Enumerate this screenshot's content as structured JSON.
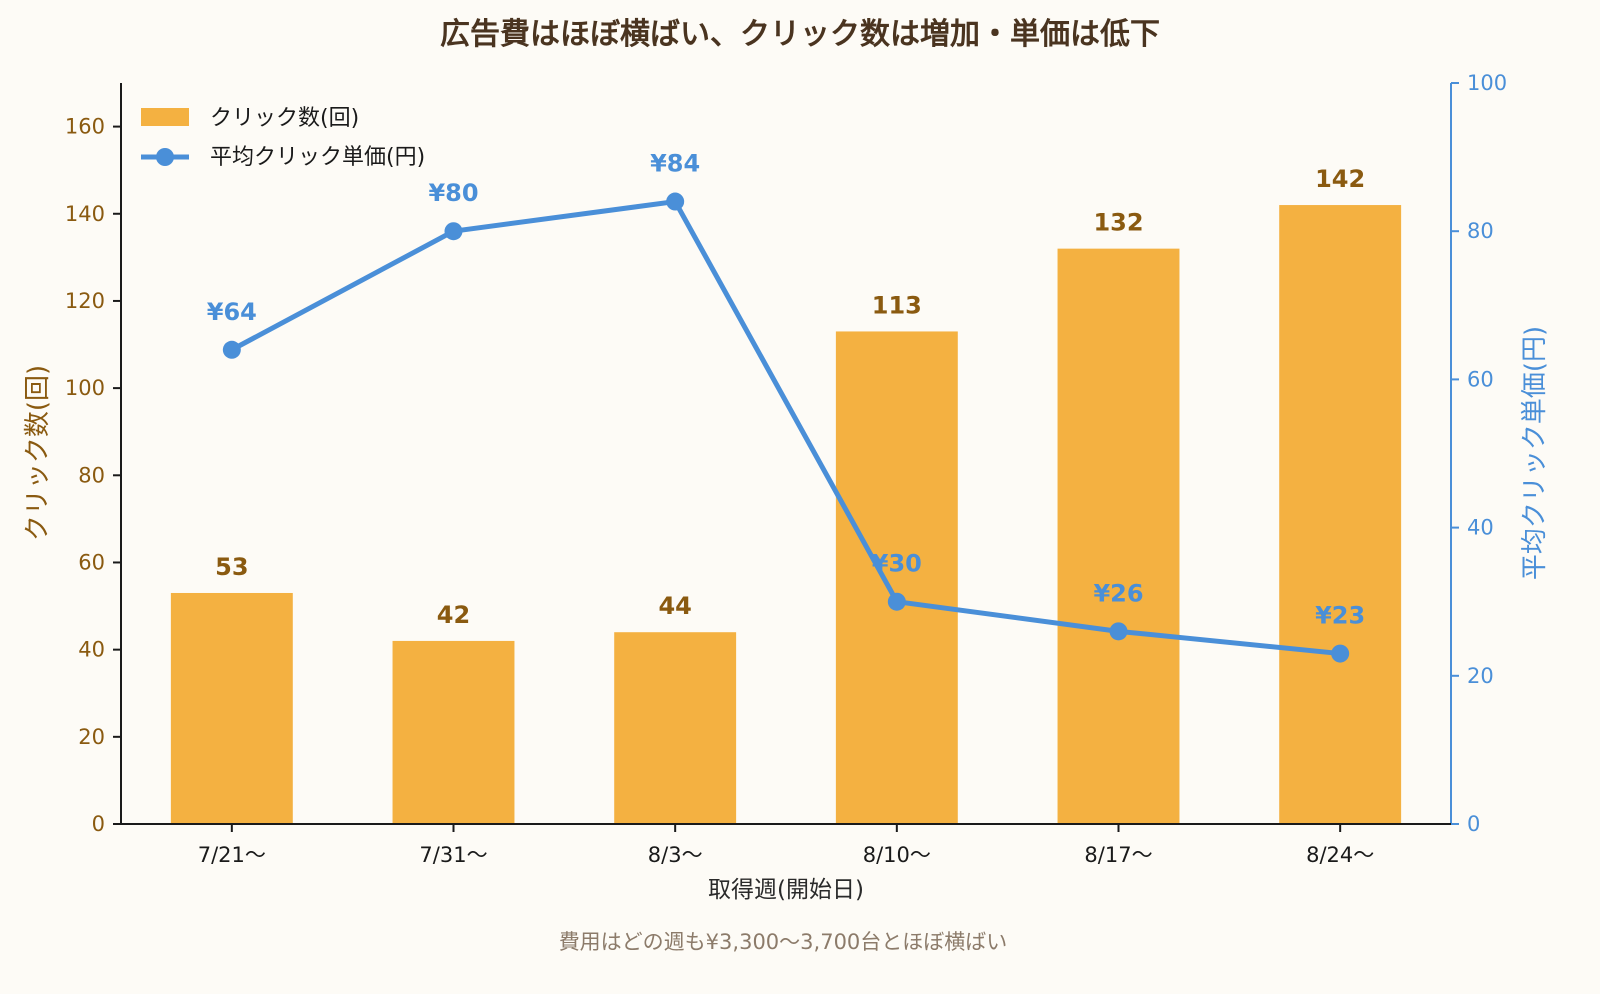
{
  "chart_data": {
    "type": "bar",
    "title": "広告費はほぼ横ばい、クリック数は増加・単価は低下",
    "note": "費用はどの週も¥3,300〜3,700台とほぼ横ばい",
    "xlabel": "取得週(開始日)",
    "ylabel_left": "クリック数(回)",
    "ylabel_right": "平均クリック単価(円)",
    "categories": [
      "7/21〜",
      "7/31〜",
      "8/3〜",
      "8/10〜",
      "8/17〜",
      "8/24〜"
    ],
    "series": [
      {
        "name": "クリック数(回)",
        "type": "bar",
        "axis": "left",
        "color": "#f4b141",
        "values": [
          53,
          42,
          44,
          113,
          132,
          142
        ],
        "labels": [
          "53",
          "42",
          "44",
          "113",
          "132",
          "142"
        ]
      },
      {
        "name": "平均クリック単価(円)",
        "type": "line",
        "axis": "right",
        "color": "#4a8fd8",
        "values": [
          64,
          80,
          84,
          30,
          26,
          23
        ],
        "labels": [
          "¥64",
          "¥80",
          "¥84",
          "¥30",
          "¥26",
          "¥23"
        ]
      }
    ],
    "ylim_left": [
      0,
      170
    ],
    "yticks_left": [
      0,
      20,
      40,
      60,
      80,
      100,
      120,
      140,
      160
    ],
    "ylim_right": [
      0,
      100
    ],
    "yticks_right": [
      0,
      20,
      40,
      60,
      80,
      100
    ],
    "legend_position": "top-left",
    "grid": false
  }
}
